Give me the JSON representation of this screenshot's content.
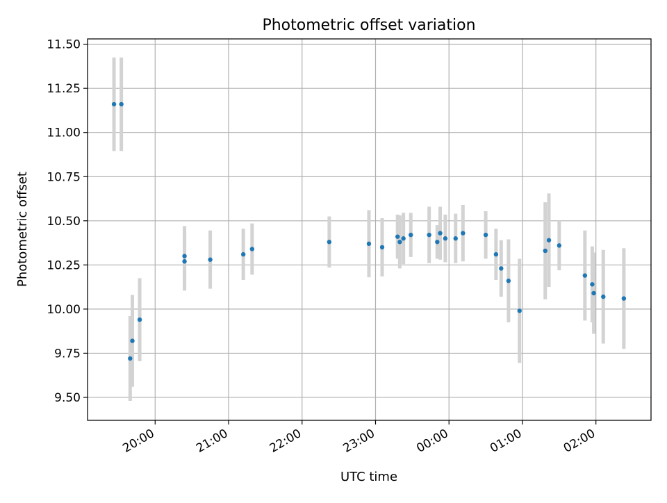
{
  "chart_data": {
    "type": "scatter",
    "title": "Photometric offset variation",
    "xlabel": "UTC time",
    "ylabel": "Photometric offset",
    "x_axis_unit": "hours (UTC, relative to 00:00 of second night)",
    "xlim": [
      -4.92,
      2.75
    ],
    "ylim": [
      9.37,
      11.53
    ],
    "x_ticks": [
      -4,
      -3,
      -2,
      -1,
      0,
      1,
      2
    ],
    "x_tick_labels": [
      "20:00",
      "21:00",
      "22:00",
      "23:00",
      "00:00",
      "01:00",
      "02:00"
    ],
    "y_ticks": [
      9.5,
      9.75,
      10.0,
      10.25,
      10.5,
      10.75,
      11.0,
      11.25,
      11.5
    ],
    "y_tick_labels": [
      "9.50",
      "9.75",
      "10.00",
      "10.25",
      "10.50",
      "10.75",
      "11.00",
      "11.25",
      "11.50"
    ],
    "grid": true,
    "colors": {
      "marker": "#1f77b4",
      "errorbar": "#d3d3d3",
      "grid": "#b0b0b0"
    },
    "series": [
      {
        "points": [
          {
            "x": -4.56,
            "y": 11.16,
            "yerr": 0.265
          },
          {
            "x": -4.46,
            "y": 11.16,
            "yerr": 0.265
          },
          {
            "x": -4.34,
            "y": 9.72,
            "yerr": 0.24
          },
          {
            "x": -4.31,
            "y": 9.82,
            "yerr": 0.26
          },
          {
            "x": -4.21,
            "y": 9.94,
            "yerr": 0.235
          },
          {
            "x": -3.6,
            "y": 10.3,
            "yerr": 0.17
          },
          {
            "x": -3.6,
            "y": 10.27,
            "yerr": 0.165
          },
          {
            "x": -3.25,
            "y": 10.28,
            "yerr": 0.165
          },
          {
            "x": -2.8,
            "y": 10.31,
            "yerr": 0.145
          },
          {
            "x": -2.68,
            "y": 10.34,
            "yerr": 0.145
          },
          {
            "x": -1.63,
            "y": 10.38,
            "yerr": 0.145
          },
          {
            "x": -1.09,
            "y": 10.37,
            "yerr": 0.19
          },
          {
            "x": -0.91,
            "y": 10.35,
            "yerr": 0.165
          },
          {
            "x": -0.7,
            "y": 10.41,
            "yerr": 0.125
          },
          {
            "x": -0.67,
            "y": 10.38,
            "yerr": 0.15
          },
          {
            "x": -0.62,
            "y": 10.4,
            "yerr": 0.145
          },
          {
            "x": -0.52,
            "y": 10.42,
            "yerr": 0.125
          },
          {
            "x": -0.27,
            "y": 10.42,
            "yerr": 0.16
          },
          {
            "x": -0.16,
            "y": 10.38,
            "yerr": 0.095
          },
          {
            "x": -0.12,
            "y": 10.43,
            "yerr": 0.15
          },
          {
            "x": -0.05,
            "y": 10.4,
            "yerr": 0.135
          },
          {
            "x": 0.09,
            "y": 10.4,
            "yerr": 0.14
          },
          {
            "x": 0.19,
            "y": 10.43,
            "yerr": 0.16
          },
          {
            "x": 0.5,
            "y": 10.42,
            "yerr": 0.135
          },
          {
            "x": 0.64,
            "y": 10.31,
            "yerr": 0.145
          },
          {
            "x": 0.71,
            "y": 10.23,
            "yerr": 0.16
          },
          {
            "x": 0.81,
            "y": 10.16,
            "yerr": 0.235
          },
          {
            "x": 0.96,
            "y": 9.99,
            "yerr": 0.295
          },
          {
            "x": 1.31,
            "y": 10.33,
            "yerr": 0.275
          },
          {
            "x": 1.36,
            "y": 10.39,
            "yerr": 0.265
          },
          {
            "x": 1.5,
            "y": 10.36,
            "yerr": 0.14
          },
          {
            "x": 1.85,
            "y": 10.19,
            "yerr": 0.255
          },
          {
            "x": 1.95,
            "y": 10.14,
            "yerr": 0.215
          },
          {
            "x": 1.97,
            "y": 10.09,
            "yerr": 0.23
          },
          {
            "x": 2.1,
            "y": 10.07,
            "yerr": 0.265
          },
          {
            "x": 2.38,
            "y": 10.06,
            "yerr": 0.285
          }
        ]
      }
    ]
  }
}
